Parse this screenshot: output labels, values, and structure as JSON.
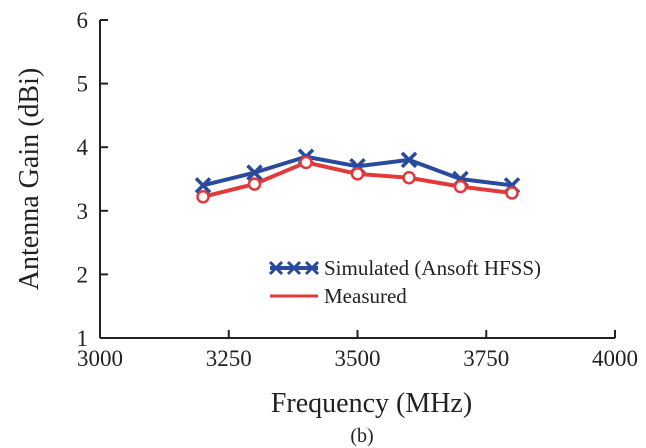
{
  "chart_data": {
    "type": "line",
    "xlabel": "Frequency (MHz)",
    "ylabel": "Antenna Gain (dBi)",
    "caption": "(b)",
    "xlim": [
      3000,
      4000
    ],
    "ylim": [
      1,
      6
    ],
    "x_ticks": [
      3000,
      3250,
      3500,
      3750,
      4000
    ],
    "y_ticks": [
      1,
      2,
      3,
      4,
      5,
      6
    ],
    "grid": false,
    "legend_position": "bottom-right",
    "x": [
      3200,
      3300,
      3400,
      3500,
      3600,
      3700,
      3800
    ],
    "series": [
      {
        "name": "Simulated (Ansoft HFSS)",
        "values": [
          3.4,
          3.6,
          3.85,
          3.7,
          3.8,
          3.5,
          3.4
        ],
        "color": "#2a4a9c",
        "marker": "x"
      },
      {
        "name": "Measured",
        "values": [
          3.22,
          3.42,
          3.76,
          3.58,
          3.52,
          3.38,
          3.28
        ],
        "color": "#e23a3a",
        "marker": "circle"
      }
    ]
  }
}
